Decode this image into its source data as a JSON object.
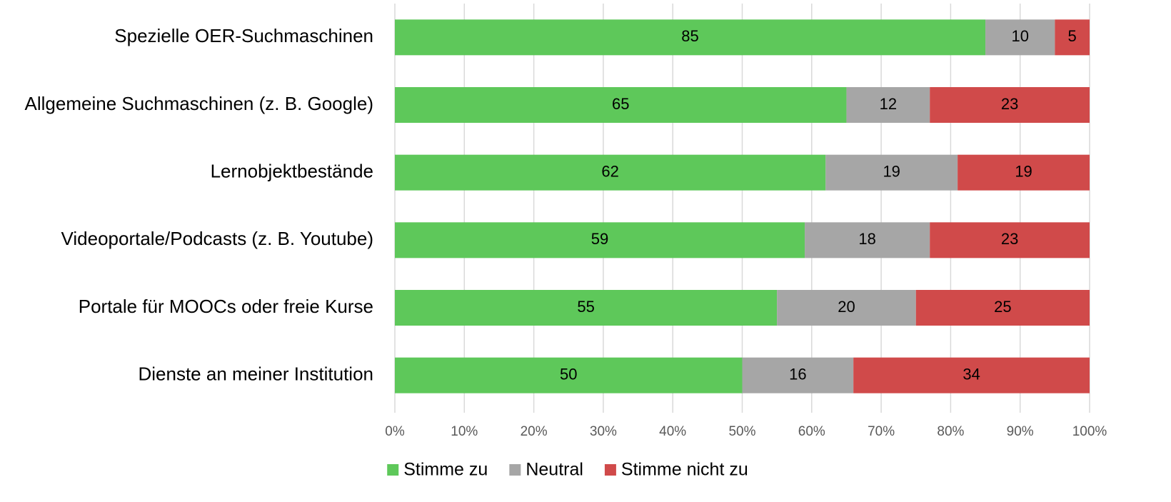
{
  "chart_data": {
    "type": "stacked-bar-horizontal",
    "categories": [
      "Spezielle OER-Suchmaschinen",
      "Allgemeine Suchmaschinen (z. B. Google)",
      "Lernobjektbestände",
      "Videoportale/Podcasts (z. B. Youtube)",
      "Portale für MOOCs oder freie Kurse",
      "Dienste an meiner Institution"
    ],
    "series": [
      {
        "name": "Stimme zu",
        "color": "#5ec85a",
        "values": [
          85,
          65,
          62,
          59,
          55,
          50
        ]
      },
      {
        "name": "Neutral",
        "color": "#a6a6a6",
        "values": [
          10,
          12,
          19,
          18,
          20,
          16
        ]
      },
      {
        "name": "Stimme nicht zu",
        "color": "#d04a4a",
        "values": [
          5,
          23,
          19,
          23,
          25,
          34
        ]
      }
    ],
    "xlim": [
      0,
      100
    ],
    "xticks": [
      {
        "value": 0,
        "label": "0%"
      },
      {
        "value": 10,
        "label": "10%"
      },
      {
        "value": 20,
        "label": "20%"
      },
      {
        "value": 30,
        "label": "30%"
      },
      {
        "value": 40,
        "label": "40%"
      },
      {
        "value": 50,
        "label": "50%"
      },
      {
        "value": 60,
        "label": "60%"
      },
      {
        "value": 70,
        "label": "70%"
      },
      {
        "value": 80,
        "label": "80%"
      },
      {
        "value": 90,
        "label": "90%"
      },
      {
        "value": 100,
        "label": "100%"
      }
    ],
    "grid": true,
    "legend": "bottom"
  }
}
